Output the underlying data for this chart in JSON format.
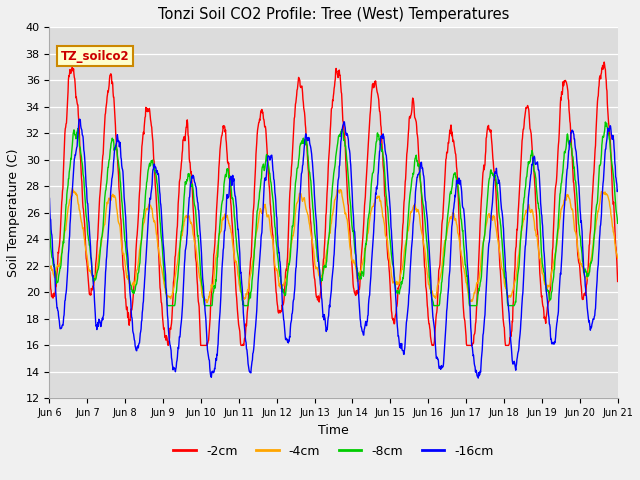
{
  "title": "Tonzi Soil CO2 Profile: Tree (West) Temperatures",
  "xlabel": "Time",
  "ylabel": "Soil Temperature (C)",
  "ylim": [
    12,
    40
  ],
  "yticks": [
    12,
    14,
    16,
    18,
    20,
    22,
    24,
    26,
    28,
    30,
    32,
    34,
    36,
    38,
    40
  ],
  "xtick_labels": [
    "Jun 6",
    "Jun 7",
    "Jun 8",
    "Jun 9",
    "Jun 10",
    "Jun 11",
    "Jun 12",
    "Jun 13",
    "Jun 14",
    "Jun 15",
    "Jun 16",
    "Jun 17",
    "Jun 18",
    "Jun 19",
    "Jun 20",
    "Jun 21"
  ],
  "legend_label": "TZ_soilco2",
  "series_labels": [
    "-2cm",
    "-4cm",
    "-8cm",
    "-16cm"
  ],
  "series_colors": [
    "#ff0000",
    "#ffa500",
    "#00cc00",
    "#0000ff"
  ],
  "bg_color": "#dcdcdc",
  "fig_bg_color": "#f0f0f0",
  "n_days": 15,
  "points_per_day": 96
}
